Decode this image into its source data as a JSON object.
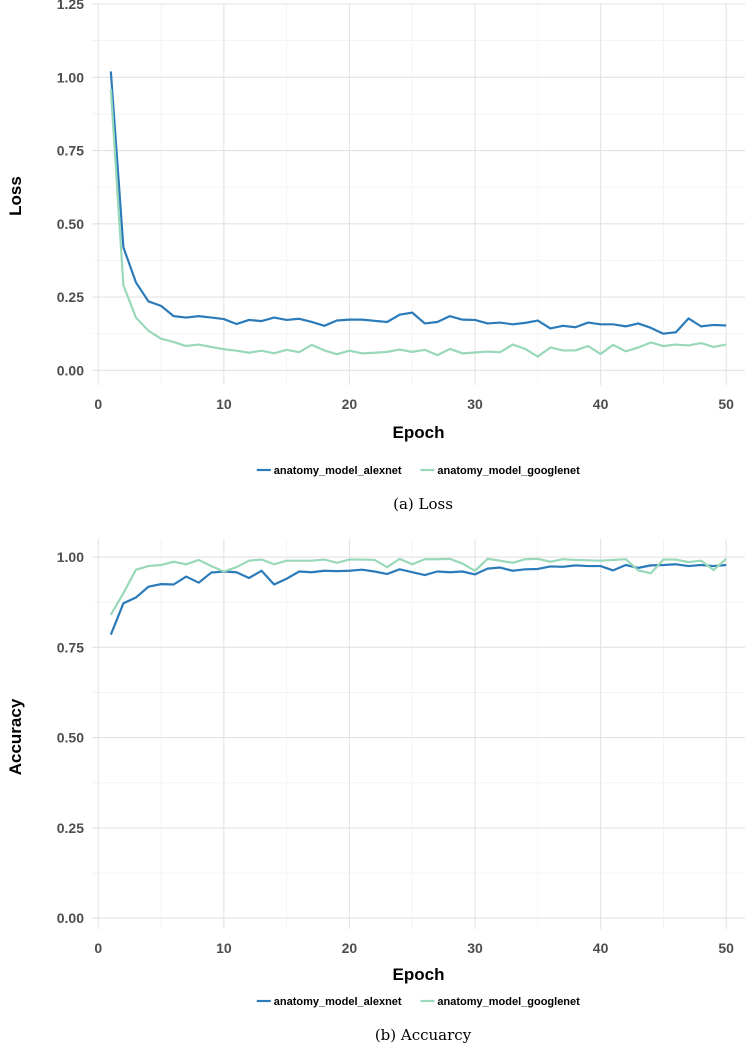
{
  "chart_data": [
    {
      "type": "line",
      "caption": "(a) Loss",
      "xlabel": "Epoch",
      "ylabel": "Loss",
      "xlim": [
        -0.5,
        51.5
      ],
      "ylim": [
        -0.05,
        1.25
      ],
      "xticks": [
        0,
        10,
        20,
        30,
        40,
        50
      ],
      "yticks": [
        0.0,
        0.25,
        0.5,
        0.75,
        1.0,
        1.25
      ],
      "ytick_labels": [
        "0.00",
        "0.25",
        "0.50",
        "0.75",
        "1.00",
        "1.25"
      ],
      "grid": true,
      "legend_position": "bottom",
      "x": [
        1,
        2,
        3,
        4,
        5,
        6,
        7,
        8,
        9,
        10,
        11,
        12,
        13,
        14,
        15,
        16,
        17,
        18,
        19,
        20,
        21,
        22,
        23,
        24,
        25,
        26,
        27,
        28,
        29,
        30,
        31,
        32,
        33,
        34,
        35,
        36,
        37,
        38,
        39,
        40,
        41,
        42,
        43,
        44,
        45,
        46,
        47,
        48,
        49,
        50
      ],
      "series": [
        {
          "name": "anatomy_model_alexnet",
          "color": "#2b7bba",
          "values": [
            1.02,
            0.42,
            0.3,
            0.235,
            0.22,
            0.185,
            0.18,
            0.185,
            0.18,
            0.175,
            0.158,
            0.172,
            0.168,
            0.18,
            0.172,
            0.176,
            0.165,
            0.152,
            0.17,
            0.173,
            0.173,
            0.169,
            0.165,
            0.19,
            0.197,
            0.16,
            0.165,
            0.185,
            0.173,
            0.172,
            0.16,
            0.163,
            0.157,
            0.162,
            0.17,
            0.143,
            0.152,
            0.147,
            0.163,
            0.157,
            0.157,
            0.15,
            0.16,
            0.145,
            0.125,
            0.13,
            0.177,
            0.15,
            0.155,
            0.153
          ]
        },
        {
          "name": "anatomy_model_googlenet",
          "color": "#99d8b8",
          "values": [
            0.96,
            0.29,
            0.18,
            0.135,
            0.108,
            0.097,
            0.083,
            0.088,
            0.08,
            0.072,
            0.067,
            0.06,
            0.067,
            0.058,
            0.07,
            0.062,
            0.087,
            0.068,
            0.055,
            0.067,
            0.058,
            0.06,
            0.063,
            0.071,
            0.063,
            0.07,
            0.052,
            0.073,
            0.058,
            0.061,
            0.064,
            0.062,
            0.088,
            0.073,
            0.047,
            0.078,
            0.068,
            0.068,
            0.083,
            0.056,
            0.087,
            0.065,
            0.078,
            0.095,
            0.083,
            0.088,
            0.085,
            0.093,
            0.08,
            0.088
          ]
        }
      ]
    },
    {
      "type": "line",
      "caption": "(b) Accuarcy",
      "xlabel": "Epoch",
      "ylabel": "Accuracy",
      "xlim": [
        -0.5,
        51.5
      ],
      "ylim": [
        -0.03,
        1.05
      ],
      "xticks": [
        0,
        10,
        20,
        30,
        40,
        50
      ],
      "yticks": [
        0.0,
        0.25,
        0.5,
        0.75,
        1.0
      ],
      "ytick_labels": [
        "0.00",
        "0.25",
        "0.50",
        "0.75",
        "1.00"
      ],
      "grid": true,
      "legend_position": "bottom",
      "x": [
        1,
        2,
        3,
        4,
        5,
        6,
        7,
        8,
        9,
        10,
        11,
        12,
        13,
        14,
        15,
        16,
        17,
        18,
        19,
        20,
        21,
        22,
        23,
        24,
        25,
        26,
        27,
        28,
        29,
        30,
        31,
        32,
        33,
        34,
        35,
        36,
        37,
        38,
        39,
        40,
        41,
        42,
        43,
        44,
        45,
        46,
        47,
        48,
        49,
        50
      ],
      "series": [
        {
          "name": "anatomy_model_alexnet",
          "color": "#2b7bba",
          "values": [
            0.785,
            0.872,
            0.888,
            0.918,
            0.925,
            0.924,
            0.946,
            0.929,
            0.957,
            0.96,
            0.958,
            0.942,
            0.962,
            0.924,
            0.94,
            0.96,
            0.958,
            0.962,
            0.961,
            0.962,
            0.965,
            0.96,
            0.953,
            0.966,
            0.958,
            0.95,
            0.96,
            0.958,
            0.96,
            0.952,
            0.968,
            0.971,
            0.962,
            0.966,
            0.967,
            0.974,
            0.973,
            0.977,
            0.975,
            0.975,
            0.963,
            0.978,
            0.97,
            0.977,
            0.978,
            0.98,
            0.975,
            0.978,
            0.975,
            0.978
          ]
        },
        {
          "name": "anatomy_model_googlenet",
          "color": "#99d8b8",
          "values": [
            0.84,
            0.9,
            0.965,
            0.975,
            0.978,
            0.987,
            0.98,
            0.992,
            0.975,
            0.96,
            0.972,
            0.99,
            0.993,
            0.98,
            0.99,
            0.99,
            0.99,
            0.993,
            0.984,
            0.993,
            0.993,
            0.992,
            0.972,
            0.995,
            0.98,
            0.994,
            0.994,
            0.995,
            0.982,
            0.962,
            0.995,
            0.99,
            0.984,
            0.994,
            0.995,
            0.987,
            0.994,
            0.992,
            0.991,
            0.99,
            0.992,
            0.994,
            0.963,
            0.955,
            0.993,
            0.993,
            0.986,
            0.99,
            0.964,
            0.995
          ]
        }
      ]
    }
  ]
}
